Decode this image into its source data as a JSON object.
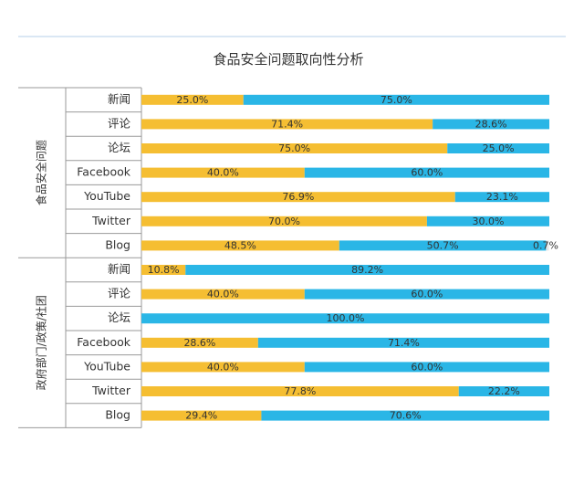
{
  "chart_data": {
    "type": "bar",
    "stacked": true,
    "orientation": "horizontal",
    "normalized": "percent",
    "title": "食品安全问题取向性分析",
    "legend": "none",
    "grid": false,
    "xlim": [
      0,
      100
    ],
    "colors": {
      "series_a": "#F5BE32",
      "series_b": "#2AB6E6",
      "series_c": "#E6E6E6",
      "frame": "#9a9a9a",
      "top_line": "#b5cfe8",
      "text": "#333333"
    },
    "groups": [
      {
        "label": "食品安全问题",
        "categories": [
          "新闻",
          "评论",
          "论坛",
          "Facebook",
          "YouTube",
          "Twitter",
          "Blog"
        ],
        "series": [
          {
            "values": [
              25.0,
              71.4,
              75.0,
              40.0,
              76.9,
              70.0,
              48.5
            ],
            "labels": [
              "25.0%",
              "71.4%",
              "75.0%",
              "40.0%",
              "76.9%",
              "70.0%",
              "48.5%"
            ]
          },
          {
            "values": [
              75.0,
              28.6,
              25.0,
              60.0,
              23.1,
              30.0,
              50.7
            ],
            "labels": [
              "75.0%",
              "28.6%",
              "25.0%",
              "60.0%",
              "23.1%",
              "30.0%",
              "50.7%"
            ]
          },
          {
            "values": [
              0,
              0,
              0,
              0,
              0,
              0,
              0.7
            ],
            "labels": [
              "",
              "",
              "",
              "",
              "",
              "",
              "0.7%"
            ]
          }
        ]
      },
      {
        "label": "政府部门/政策/社团",
        "categories": [
          "新闻",
          "评论",
          "论坛",
          "Facebook",
          "YouTube",
          "Twitter",
          "Blog"
        ],
        "series": [
          {
            "values": [
              10.8,
              40.0,
              0,
              28.6,
              40.0,
              77.8,
              29.4
            ],
            "labels": [
              "10.8%",
              "40.0%",
              "",
              "28.6%",
              "40.0%",
              "77.8%",
              "29.4%"
            ]
          },
          {
            "values": [
              89.2,
              60.0,
              100.0,
              71.4,
              60.0,
              22.2,
              70.6
            ],
            "labels": [
              "89.2%",
              "60.0%",
              "100.0%",
              "71.4%",
              "60.0%",
              "22.2%",
              "70.6%"
            ]
          },
          {
            "values": [
              0,
              0,
              0,
              0,
              0,
              0,
              0
            ],
            "labels": [
              "",
              "",
              "",
              "",
              "",
              "",
              ""
            ]
          }
        ]
      }
    ]
  }
}
